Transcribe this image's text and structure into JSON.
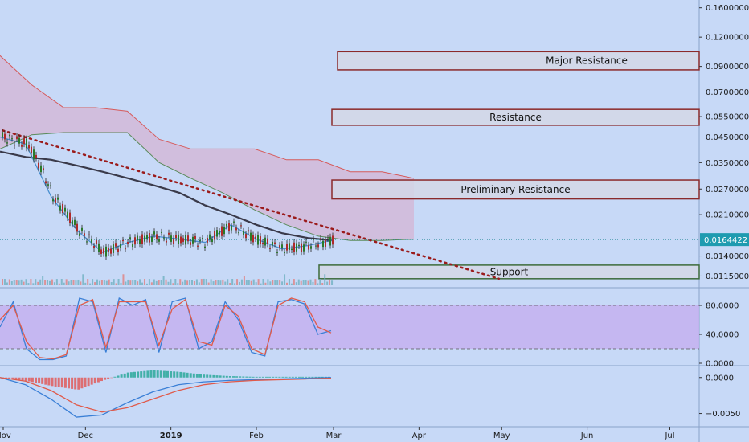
{
  "chart_data": [
    {
      "type": "line",
      "panel": "price",
      "scale": "log",
      "ylim": [
        0.0105,
        0.17
      ],
      "y_ticks": [
        "0.1600000",
        "0.1200000",
        "0.0900000",
        "0.0700000",
        "0.0550000",
        "0.0450000",
        "0.0350000",
        "0.0270000",
        "0.0210000",
        "0.0140000",
        "0.0115000"
      ],
      "current_price": "0.0164422",
      "x_tick_labels": [
        "Nov",
        "Dec",
        "2019",
        "Feb",
        "Mar",
        "Apr",
        "May",
        "Jun",
        "Jul"
      ],
      "zones": [
        {
          "label": "Major Resistance",
          "low": 0.087,
          "high": 0.104,
          "color": "#8b2a2a"
        },
        {
          "label": "Resistance",
          "low": 0.0505,
          "high": 0.059,
          "color": "#8b2a2a"
        },
        {
          "label": "Preliminary Resistance",
          "low": 0.0245,
          "high": 0.0295,
          "color": "#8b2a2a"
        },
        {
          "label": "Support",
          "low": 0.0112,
          "high": 0.0128,
          "color": "#3d6b3a"
        }
      ],
      "series": [
        {
          "role": "trendline-dotted",
          "color": "#9b1b1b",
          "points": [
            [
              "2018-11-01",
              0.048
            ],
            [
              "2019-04-30",
              0.0112
            ]
          ]
        },
        {
          "role": "moving-average",
          "color": "#3a3a4a",
          "values": [
            0.039,
            0.037,
            0.036,
            0.034,
            0.032,
            0.03,
            0.028,
            0.026,
            0.023,
            0.021,
            0.019,
            0.0175,
            0.0167,
            0.0163
          ]
        },
        {
          "role": "cloud-upper",
          "color": "#d65a5a",
          "values": [
            0.1,
            0.075,
            0.06,
            0.06,
            0.058,
            0.044,
            0.04,
            0.04,
            0.04,
            0.036,
            0.036,
            0.032,
            0.032,
            0.03
          ]
        },
        {
          "role": "cloud-lower",
          "color": "#5a8a5a",
          "values": [
            0.04,
            0.046,
            0.047,
            0.047,
            0.047,
            0.035,
            0.03,
            0.026,
            0.022,
            0.019,
            0.017,
            0.0163,
            0.0163,
            0.0165
          ]
        },
        {
          "role": "price",
          "color": "#2a2a2a",
          "values": [
            0.045,
            0.042,
            0.025,
            0.018,
            0.0145,
            0.016,
            0.017,
            0.0165,
            0.016,
            0.019,
            0.0165,
            0.015,
            0.0155,
            0.0164
          ]
        }
      ]
    },
    {
      "type": "line",
      "panel": "stochastic",
      "ylim": [
        0,
        100
      ],
      "y_ticks": [
        "80.0000",
        "40.0000",
        "0.0000"
      ],
      "band": [
        20,
        80
      ],
      "series": [
        {
          "role": "k",
          "color": "#3a7fd6",
          "values": [
            50,
            85,
            20,
            5,
            5,
            10,
            90,
            85,
            15,
            90,
            80,
            88,
            15,
            85,
            90,
            20,
            30,
            85,
            60,
            15,
            10,
            85,
            88,
            82,
            40,
            45
          ]
        },
        {
          "role": "d",
          "color": "#e05a4a",
          "values": [
            60,
            80,
            30,
            8,
            6,
            12,
            80,
            88,
            22,
            85,
            85,
            85,
            25,
            75,
            88,
            30,
            25,
            80,
            65,
            20,
            12,
            80,
            90,
            85,
            50,
            42
          ]
        }
      ]
    },
    {
      "type": "bar",
      "panel": "macd",
      "ylim": [
        -0.0065,
        0.0012
      ],
      "y_ticks": [
        "0.0000",
        "−0.0050"
      ],
      "series": [
        {
          "role": "macd",
          "color": "#3a7fd6",
          "values": [
            0,
            -0.001,
            -0.003,
            -0.0055,
            -0.0052,
            -0.0035,
            -0.002,
            -0.001,
            -0.0006,
            -0.0004,
            -0.0003,
            -0.0002,
            -0.0001,
            0
          ]
        },
        {
          "role": "signal",
          "color": "#e05a4a",
          "values": [
            0,
            -0.0005,
            -0.0018,
            -0.0038,
            -0.0048,
            -0.0042,
            -0.003,
            -0.0018,
            -0.001,
            -0.0006,
            -0.0004,
            -0.0003,
            -0.0002,
            -0.0001
          ]
        }
      ]
    }
  ]
}
